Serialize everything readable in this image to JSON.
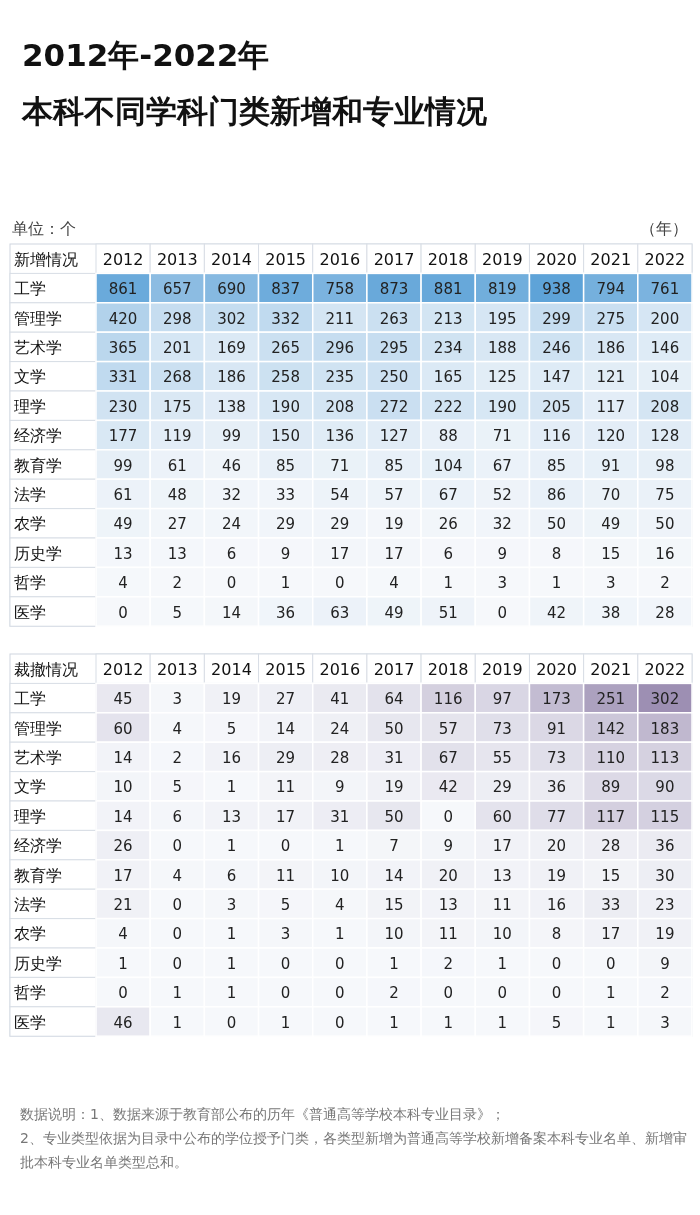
{
  "chart_data": [
    {
      "type": "heatmap",
      "title": "2012年-2022年",
      "subtitle": "本科不同学科门类新增和专业情况",
      "ylabel": "新增情况",
      "annotations": [
        "单位：个",
        "（年）"
      ],
      "categories": [
        "2012",
        "2013",
        "2014",
        "2015",
        "2016",
        "2017",
        "2018",
        "2019",
        "2020",
        "2021",
        "2022"
      ],
      "y_categories": [
        "工学",
        "管理学",
        "艺术学",
        "文学",
        "理学",
        "经济学",
        "教育学",
        "法学",
        "农学",
        "历史学",
        "哲学",
        "医学"
      ],
      "color": "#5ea3d8",
      "data_labels": true,
      "cells": [
        [
          861,
          657,
          690,
          837,
          758,
          873,
          881,
          819,
          938,
          794,
          761
        ],
        [
          420,
          298,
          302,
          332,
          211,
          263,
          213,
          195,
          299,
          275,
          200
        ],
        [
          365,
          201,
          169,
          265,
          296,
          295,
          234,
          188,
          246,
          186,
          146
        ],
        [
          331,
          268,
          186,
          258,
          235,
          250,
          165,
          125,
          147,
          121,
          104
        ],
        [
          230,
          175,
          138,
          190,
          208,
          272,
          222,
          190,
          205,
          117,
          208
        ],
        [
          177,
          119,
          99,
          150,
          136,
          127,
          88,
          71,
          116,
          120,
          128
        ],
        [
          99,
          61,
          46,
          85,
          71,
          85,
          104,
          67,
          85,
          91,
          98
        ],
        [
          61,
          48,
          32,
          33,
          54,
          57,
          67,
          52,
          86,
          70,
          75
        ],
        [
          49,
          27,
          24,
          29,
          29,
          19,
          26,
          32,
          50,
          49,
          50
        ],
        [
          13,
          13,
          6,
          9,
          17,
          17,
          6,
          9,
          8,
          15,
          16
        ],
        [
          4,
          2,
          0,
          1,
          0,
          4,
          1,
          3,
          1,
          3,
          2
        ],
        [
          0,
          5,
          14,
          36,
          63,
          49,
          51,
          0,
          42,
          38,
          28
        ]
      ]
    },
    {
      "type": "heatmap",
      "ylabel": "裁撤情况",
      "annotations": [
        "数据说明：1、数据来源于教育部公布的历年《普通高等学校本科专业目录》；",
        "2、专业类型依据为目录中公布的学位授予门类，各类型新增为普通高等学校新增备案本科专业名单、新增审批本科专业名单类型总和。"
      ],
      "categories": [
        "2012",
        "2013",
        "2014",
        "2015",
        "2016",
        "2017",
        "2018",
        "2019",
        "2020",
        "2021",
        "2022"
      ],
      "y_categories": [
        "工学",
        "管理学",
        "艺术学",
        "文学",
        "理学",
        "经济学",
        "教育学",
        "法学",
        "农学",
        "历史学",
        "哲学",
        "医学"
      ],
      "color": "#9d8fb3",
      "data_labels": true,
      "cells": [
        [
          45,
          3,
          19,
          27,
          41,
          64,
          116,
          97,
          173,
          251,
          302
        ],
        [
          60,
          4,
          5,
          14,
          24,
          50,
          57,
          73,
          91,
          142,
          183
        ],
        [
          14,
          2,
          16,
          29,
          28,
          31,
          67,
          55,
          73,
          110,
          113
        ],
        [
          10,
          5,
          1,
          11,
          9,
          19,
          42,
          29,
          36,
          89,
          90
        ],
        [
          14,
          6,
          13,
          17,
          31,
          50,
          0,
          60,
          77,
          117,
          115
        ],
        [
          26,
          0,
          1,
          0,
          1,
          7,
          9,
          17,
          20,
          28,
          36
        ],
        [
          17,
          4,
          6,
          11,
          10,
          14,
          20,
          13,
          19,
          15,
          30
        ],
        [
          21,
          0,
          3,
          5,
          4,
          15,
          13,
          11,
          16,
          33,
          23
        ],
        [
          4,
          0,
          1,
          3,
          1,
          10,
          11,
          10,
          8,
          17,
          19
        ],
        [
          1,
          0,
          1,
          0,
          0,
          1,
          2,
          1,
          0,
          0,
          9
        ],
        [
          0,
          1,
          1,
          0,
          0,
          2,
          0,
          0,
          0,
          1,
          2
        ],
        [
          46,
          1,
          0,
          1,
          0,
          1,
          1,
          1,
          5,
          1,
          3
        ]
      ]
    }
  ]
}
